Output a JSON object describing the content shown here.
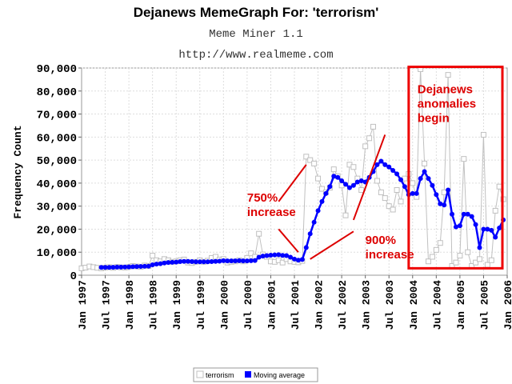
{
  "chart_data": {
    "type": "line",
    "title": "Dejanews MemeGraph For: 'terrorism'",
    "subtitle": "Meme Miner 1.1",
    "subtitle2": "http://www.realmeme.com",
    "xlabel": "",
    "ylabel": "Frequency Count",
    "x_start": "1997-01",
    "x_end": "2006-01",
    "ylim": [
      0,
      90000
    ],
    "yticks": [
      0,
      10000,
      20000,
      30000,
      40000,
      50000,
      60000,
      70000,
      80000,
      90000
    ],
    "ytick_labels": [
      "0",
      "10,000",
      "20,000",
      "30,000",
      "40,000",
      "50,000",
      "60,000",
      "70,000",
      "80,000",
      "90,000"
    ],
    "xtick_labels": [
      "Jan 1997",
      "Jul 1997",
      "Jan 1998",
      "Jul 1998",
      "Jan 1999",
      "Jul 1999",
      "Jan 2000",
      "Jul 2000",
      "Jan 2001",
      "Jul 2001",
      "Jan 2002",
      "Jul 2002",
      "Jan 2003",
      "Jul 2003",
      "Jan 2004",
      "Jul 2004",
      "Jan 2005",
      "Jul 2005",
      "Jan 2006"
    ],
    "grid": true,
    "legend": "bottom-center",
    "series": [
      {
        "name": "terrorism",
        "color": "#c0c0c0",
        "marker": "square",
        "points": [
          [
            "1997-01",
            3000
          ],
          [
            "1997-02",
            3300
          ],
          [
            "1997-03",
            3800
          ],
          [
            "1997-04",
            3500
          ],
          [
            "1997-05",
            3200
          ],
          [
            "1997-06",
            3000
          ],
          [
            "1997-07",
            3300
          ],
          [
            "1997-08",
            3500
          ],
          [
            "1997-09",
            3200
          ],
          [
            "1997-10",
            3600
          ],
          [
            "1997-11",
            3400
          ],
          [
            "1997-12",
            3300
          ],
          [
            "1998-01",
            3600
          ],
          [
            "1998-02",
            4000
          ],
          [
            "1998-03",
            3800
          ],
          [
            "1998-04",
            3600
          ],
          [
            "1998-05",
            4200
          ],
          [
            "1998-06",
            4000
          ],
          [
            "1998-07",
            8500
          ],
          [
            "1998-08",
            6500
          ],
          [
            "1998-09",
            6000
          ],
          [
            "1998-10",
            7000
          ],
          [
            "1998-11",
            6500
          ],
          [
            "1998-12",
            5800
          ],
          [
            "1999-01",
            6000
          ],
          [
            "1999-02",
            6500
          ],
          [
            "1999-03",
            6800
          ],
          [
            "1999-04",
            5500
          ],
          [
            "1999-05",
            5300
          ],
          [
            "1999-06",
            5800
          ],
          [
            "1999-07",
            6500
          ],
          [
            "1999-08",
            5800
          ],
          [
            "1999-09",
            6300
          ],
          [
            "1999-10",
            7500
          ],
          [
            "1999-11",
            8000
          ],
          [
            "1999-12",
            6800
          ],
          [
            "2000-01",
            7000
          ],
          [
            "2000-02",
            5500
          ],
          [
            "2000-03",
            5800
          ],
          [
            "2000-04",
            6000
          ],
          [
            "2000-05",
            6500
          ],
          [
            "2000-06",
            6000
          ],
          [
            "2000-07",
            7500
          ],
          [
            "2000-08",
            9500
          ],
          [
            "2000-09",
            8000
          ],
          [
            "2000-10",
            18000
          ],
          [
            "2000-11",
            9000
          ],
          [
            "2000-12",
            8000
          ],
          [
            "2001-01",
            6000
          ],
          [
            "2001-02",
            5800
          ],
          [
            "2001-03",
            6500
          ],
          [
            "2001-04",
            5500
          ],
          [
            "2001-05",
            7000
          ],
          [
            "2001-06",
            6000
          ],
          [
            "2001-07",
            5800
          ],
          [
            "2001-08",
            5600
          ],
          [
            "2001-09",
            6200
          ],
          [
            "2001-10",
            51500
          ],
          [
            "2001-11",
            50000
          ],
          [
            "2001-12",
            48500
          ],
          [
            "2002-01",
            42000
          ],
          [
            "2002-02",
            37500
          ],
          [
            "2002-03",
            36000
          ],
          [
            "2002-04",
            38000
          ],
          [
            "2002-05",
            46000
          ],
          [
            "2002-06",
            43000
          ],
          [
            "2002-07",
            39000
          ],
          [
            "2002-08",
            26000
          ],
          [
            "2002-09",
            48000
          ],
          [
            "2002-10",
            47000
          ],
          [
            "2002-11",
            42000
          ],
          [
            "2002-12",
            37000
          ],
          [
            "2003-01",
            56000
          ],
          [
            "2003-02",
            59500
          ],
          [
            "2003-03",
            64500
          ],
          [
            "2003-04",
            41000
          ],
          [
            "2003-05",
            36000
          ],
          [
            "2003-06",
            33500
          ],
          [
            "2003-07",
            30000
          ],
          [
            "2003-08",
            28500
          ],
          [
            "2003-09",
            37000
          ],
          [
            "2003-10",
            32000
          ],
          [
            "2003-11",
            42000
          ],
          [
            "2003-12",
            44000
          ],
          [
            "2004-01",
            40000
          ],
          [
            "2004-02",
            34000
          ],
          [
            "2004-03",
            89500
          ],
          [
            "2004-04",
            48500
          ],
          [
            "2004-05",
            6000
          ],
          [
            "2004-06",
            8000
          ],
          [
            "2004-07",
            11000
          ],
          [
            "2004-08",
            14000
          ],
          [
            "2004-09",
            36000
          ],
          [
            "2004-10",
            87000
          ],
          [
            "2004-11",
            4000
          ],
          [
            "2004-12",
            5500
          ],
          [
            "2005-01",
            8500
          ],
          [
            "2005-02",
            50500
          ],
          [
            "2005-03",
            10000
          ],
          [
            "2005-04",
            4000
          ],
          [
            "2005-05",
            5500
          ],
          [
            "2005-06",
            7000
          ],
          [
            "2005-07",
            61000
          ],
          [
            "2005-08",
            4500
          ],
          [
            "2005-09",
            6500
          ],
          [
            "2005-10",
            28000
          ],
          [
            "2005-11",
            38500
          ],
          [
            "2005-12",
            33000
          ]
        ]
      },
      {
        "name": "Moving average",
        "color": "#0000ff",
        "marker": "circle",
        "points": [
          [
            "1997-06",
            3400
          ],
          [
            "1997-07",
            3400
          ],
          [
            "1997-08",
            3400
          ],
          [
            "1997-09",
            3450
          ],
          [
            "1997-10",
            3500
          ],
          [
            "1997-11",
            3500
          ],
          [
            "1997-12",
            3550
          ],
          [
            "1998-01",
            3600
          ],
          [
            "1998-02",
            3700
          ],
          [
            "1998-03",
            3750
          ],
          [
            "1998-04",
            3800
          ],
          [
            "1998-05",
            3850
          ],
          [
            "1998-06",
            3900
          ],
          [
            "1998-07",
            4500
          ],
          [
            "1998-08",
            4800
          ],
          [
            "1998-09",
            5000
          ],
          [
            "1998-10",
            5300
          ],
          [
            "1998-11",
            5500
          ],
          [
            "1998-12",
            5600
          ],
          [
            "1999-01",
            5700
          ],
          [
            "1999-02",
            5900
          ],
          [
            "1999-03",
            6000
          ],
          [
            "1999-04",
            6000
          ],
          [
            "1999-05",
            5900
          ],
          [
            "1999-06",
            5800
          ],
          [
            "1999-07",
            5800
          ],
          [
            "1999-08",
            5800
          ],
          [
            "1999-09",
            5800
          ],
          [
            "1999-10",
            5900
          ],
          [
            "1999-11",
            6000
          ],
          [
            "1999-12",
            6100
          ],
          [
            "2000-01",
            6300
          ],
          [
            "2000-02",
            6200
          ],
          [
            "2000-03",
            6200
          ],
          [
            "2000-04",
            6200
          ],
          [
            "2000-05",
            6300
          ],
          [
            "2000-06",
            6200
          ],
          [
            "2000-07",
            6200
          ],
          [
            "2000-08",
            6300
          ],
          [
            "2000-09",
            6400
          ],
          [
            "2000-10",
            7800
          ],
          [
            "2000-11",
            8300
          ],
          [
            "2000-12",
            8500
          ],
          [
            "2001-01",
            8700
          ],
          [
            "2001-02",
            8800
          ],
          [
            "2001-03",
            8900
          ],
          [
            "2001-04",
            8600
          ],
          [
            "2001-05",
            8500
          ],
          [
            "2001-06",
            7800
          ],
          [
            "2001-07",
            7000
          ],
          [
            "2001-08",
            6500
          ],
          [
            "2001-09",
            6800
          ],
          [
            "2001-10",
            12000
          ],
          [
            "2001-11",
            18000
          ],
          [
            "2001-12",
            23000
          ],
          [
            "2002-01",
            28000
          ],
          [
            "2002-02",
            32000
          ],
          [
            "2002-03",
            35500
          ],
          [
            "2002-04",
            38500
          ],
          [
            "2002-05",
            43000
          ],
          [
            "2002-06",
            42500
          ],
          [
            "2002-07",
            41000
          ],
          [
            "2002-08",
            39500
          ],
          [
            "2002-09",
            38000
          ],
          [
            "2002-10",
            39000
          ],
          [
            "2002-11",
            40500
          ],
          [
            "2002-12",
            41000
          ],
          [
            "2003-01",
            40500
          ],
          [
            "2003-02",
            42500
          ],
          [
            "2003-03",
            45000
          ],
          [
            "2003-04",
            48000
          ],
          [
            "2003-05",
            49500
          ],
          [
            "2003-06",
            48000
          ],
          [
            "2003-07",
            47000
          ],
          [
            "2003-08",
            45500
          ],
          [
            "2003-09",
            44000
          ],
          [
            "2003-10",
            41500
          ],
          [
            "2003-11",
            38500
          ],
          [
            "2003-12",
            35000
          ],
          [
            "2004-01",
            35500
          ],
          [
            "2004-02",
            35500
          ],
          [
            "2004-03",
            42000
          ],
          [
            "2004-04",
            45000
          ],
          [
            "2004-05",
            42000
          ],
          [
            "2004-06",
            39000
          ],
          [
            "2004-07",
            35000
          ],
          [
            "2004-08",
            31000
          ],
          [
            "2004-09",
            30500
          ],
          [
            "2004-10",
            37000
          ],
          [
            "2004-11",
            26500
          ],
          [
            "2004-12",
            21000
          ],
          [
            "2005-01",
            21500
          ],
          [
            "2005-02",
            26500
          ],
          [
            "2005-03",
            26500
          ],
          [
            "2005-04",
            25500
          ],
          [
            "2005-05",
            22000
          ],
          [
            "2005-06",
            12000
          ],
          [
            "2005-07",
            20000
          ],
          [
            "2005-08",
            20000
          ],
          [
            "2005-09",
            19500
          ],
          [
            "2005-10",
            16500
          ],
          [
            "2005-11",
            20500
          ],
          [
            "2005-12",
            24000
          ]
        ]
      }
    ],
    "annotations": [
      {
        "lines": [
          "Dejanews",
          "anomalies",
          "begin"
        ],
        "at": [
          "2004-01",
          79000
        ],
        "color": "#dd0000"
      },
      {
        "lines": [
          "750%",
          "increase"
        ],
        "at": [
          "2000-07",
          32000
        ],
        "color": "#dd0000"
      },
      {
        "lines": [
          "900%",
          "increase"
        ],
        "at": [
          "2003-01",
          13500
        ],
        "color": "#dd0000"
      }
    ],
    "arrows": [
      {
        "from": [
          "2001-03",
          32000
        ],
        "to": [
          "2001-10",
          48000
        ]
      },
      {
        "from": [
          "2001-03",
          20000
        ],
        "to": [
          "2001-08",
          10000
        ]
      },
      {
        "from": [
          "2002-10",
          24000
        ],
        "to": [
          "2003-06",
          61000
        ]
      },
      {
        "from": [
          "2002-10",
          19000
        ],
        "to": [
          "2001-11",
          7000
        ]
      }
    ],
    "highlight_box": {
      "x0": "2003-12",
      "x1": "2006-01",
      "y0": 3000,
      "y1": 90500,
      "color": "#ee0000"
    }
  }
}
